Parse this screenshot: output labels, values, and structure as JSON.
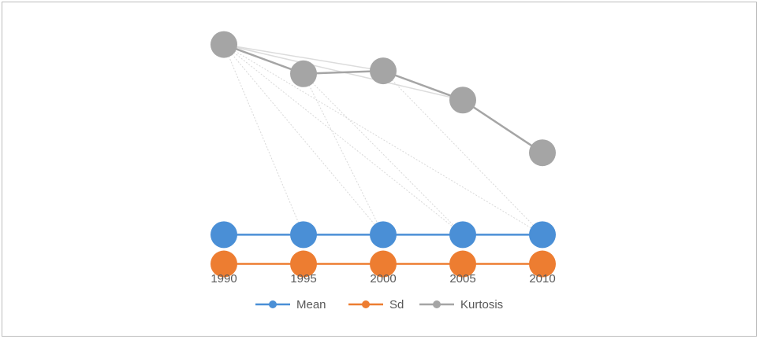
{
  "chart_data": {
    "type": "line",
    "title": "",
    "xlabel": "",
    "ylabel": "",
    "x": [
      "1990",
      "1995",
      "2000",
      "2005",
      "2010"
    ],
    "series": [
      {
        "name": "Mean",
        "color": "#4a8fd6",
        "values": [
          0,
          0,
          0,
          0,
          0
        ]
      },
      {
        "name": "Sd",
        "color": "#ed7d31",
        "values": [
          -1,
          -1,
          -1,
          -1,
          -1
        ]
      },
      {
        "name": "Kurtosis",
        "color": "#a5a5a5",
        "values": [
          6.5,
          5.5,
          5.6,
          4.6,
          2.8
        ]
      }
    ],
    "ylim": [
      -1.2,
      7
    ],
    "grid": false,
    "legend_position": "bottom"
  }
}
